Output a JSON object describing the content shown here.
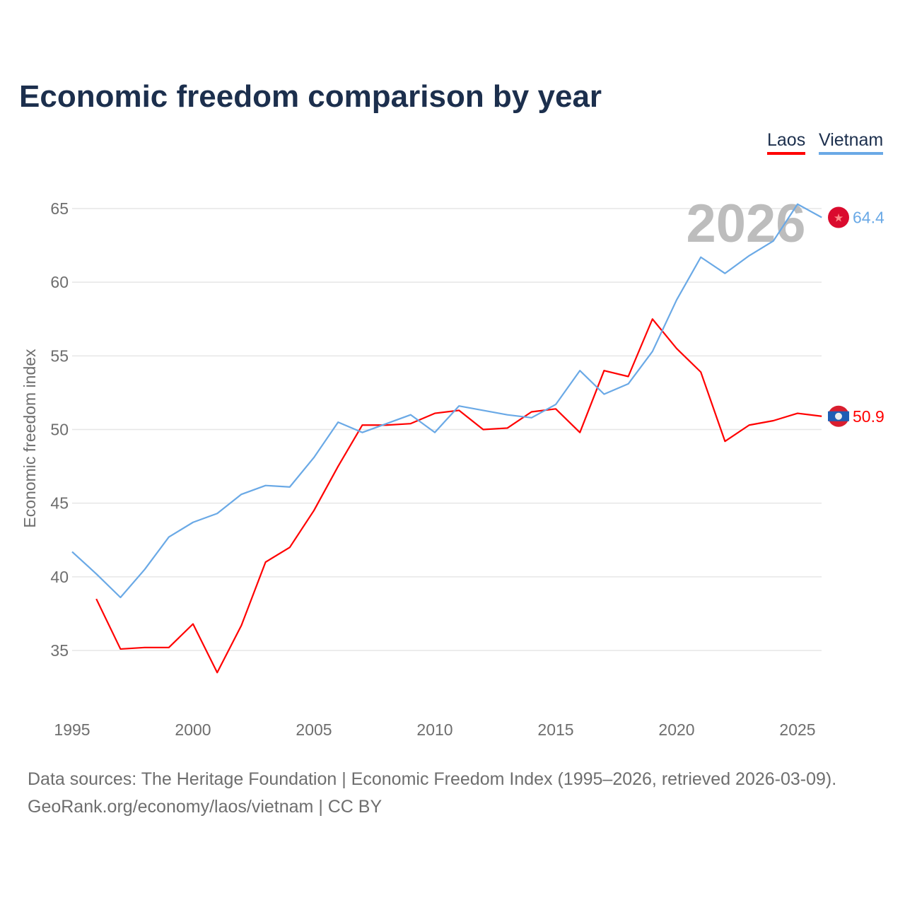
{
  "chart_data": {
    "type": "line",
    "title": "Economic freedom comparison by year",
    "xlabel": "",
    "ylabel": "Economic freedom index",
    "xlim": [
      1995,
      2026
    ],
    "ylim": [
      31,
      67
    ],
    "yticks": [
      35,
      40,
      45,
      50,
      55,
      60,
      65
    ],
    "xticks": [
      1995,
      2000,
      2005,
      2010,
      2015,
      2020,
      2025
    ],
    "grid": true,
    "legend_placement": "top-right",
    "highlight_year": "2026",
    "series": [
      {
        "name": "Laos",
        "color": "#ff0000",
        "end_label": "50.9",
        "x": [
          1996,
          1997,
          1998,
          1999,
          2000,
          2001,
          2002,
          2003,
          2004,
          2005,
          2006,
          2007,
          2008,
          2009,
          2010,
          2011,
          2012,
          2013,
          2014,
          2015,
          2016,
          2017,
          2018,
          2019,
          2020,
          2021,
          2022,
          2023,
          2024,
          2025,
          2026
        ],
        "values": [
          38.5,
          35.1,
          35.2,
          35.2,
          36.8,
          33.5,
          36.7,
          41.0,
          42.0,
          44.5,
          47.5,
          50.3,
          50.3,
          50.4,
          51.1,
          51.3,
          50.0,
          50.1,
          51.2,
          51.4,
          49.8,
          54.0,
          53.6,
          57.5,
          55.5,
          53.9,
          49.2,
          50.3,
          50.6,
          51.1,
          50.9
        ]
      },
      {
        "name": "Vietnam",
        "color": "#6aa9e6",
        "end_label": "64.4",
        "x": [
          1995,
          1996,
          1997,
          1998,
          1999,
          2000,
          2001,
          2002,
          2003,
          2004,
          2005,
          2006,
          2007,
          2008,
          2009,
          2010,
          2011,
          2012,
          2013,
          2014,
          2015,
          2016,
          2017,
          2018,
          2019,
          2020,
          2021,
          2022,
          2023,
          2024,
          2025,
          2026
        ],
        "values": [
          41.7,
          40.2,
          38.6,
          40.5,
          42.7,
          43.7,
          44.3,
          45.6,
          46.2,
          46.1,
          48.1,
          50.5,
          49.8,
          50.4,
          51.0,
          49.8,
          51.6,
          51.3,
          51.0,
          50.8,
          51.7,
          54.0,
          52.4,
          53.1,
          55.3,
          58.8,
          61.7,
          60.6,
          61.8,
          62.8,
          65.3,
          64.4
        ]
      }
    ]
  },
  "footer": {
    "sources": "Data sources: The Heritage Foundation | Economic Freedom Index (1995–2026, retrieved 2026-03-09).",
    "credit": "GeoRank.org/economy/laos/vietnam | CC BY"
  }
}
